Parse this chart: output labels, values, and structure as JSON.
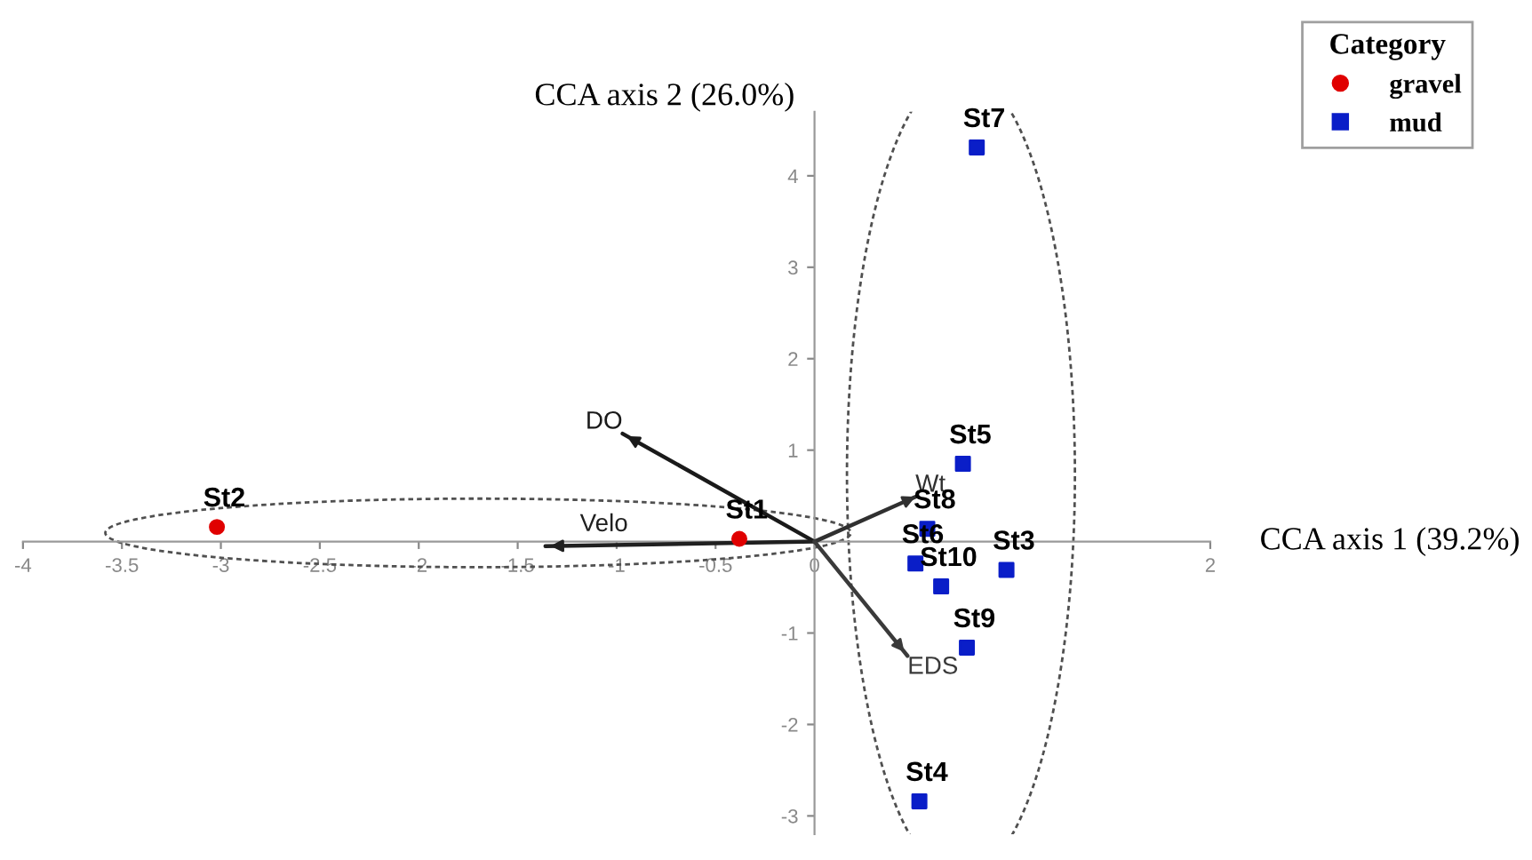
{
  "chart_data": {
    "type": "scatter",
    "xlabel": "CCA axis 1 (39.2%)",
    "ylabel": "CCA axis 2 (26.0%)",
    "legend_title": "Category",
    "xlim": [
      -4,
      2
    ],
    "ylim": [
      -3.2,
      4.7
    ],
    "xticks": [
      -4,
      -3.5,
      -3,
      -2.5,
      -2,
      -1.5,
      -1,
      -0.5,
      0,
      2
    ],
    "yticks": [
      -3,
      -2,
      -1,
      {
        "value": 0,
        "label": null
      },
      1,
      2,
      3,
      4
    ],
    "grid": false,
    "legend": "top right",
    "series": [
      {
        "name": "gravel",
        "color": "#e00000",
        "marker": "circle",
        "x": [
          -3.02,
          -0.38
        ],
        "values": [
          0.16,
          0.03
        ]
      },
      {
        "name": "mud",
        "color": "#0a1ec8",
        "marker": "square",
        "x": [
          0.82,
          0.75,
          0.57,
          0.51,
          0.64,
          0.97,
          0.77,
          0.53
        ],
        "values": [
          4.31,
          0.85,
          0.14,
          -0.24,
          -0.49,
          -0.31,
          -1.16,
          -2.84
        ]
      },
      {
        "name": "DO",
        "type": "line",
        "color": "#1a1a1a",
        "x": [
          0,
          -0.97
        ],
        "values": [
          0,
          1.18
        ]
      },
      {
        "name": "Velo",
        "type": "line",
        "color": "#202020",
        "x": [
          0,
          -1.36
        ],
        "values": [
          0,
          -0.05
        ]
      },
      {
        "name": "Wt",
        "type": "line",
        "color": "#303030",
        "x": [
          0,
          0.51
        ],
        "values": [
          0,
          0.49
        ]
      },
      {
        "name": "EDS",
        "type": "line",
        "color": "#3a3a3a",
        "x": [
          0,
          0.47
        ],
        "values": [
          0,
          -1.25
        ]
      }
    ],
    "annotations": [
      {
        "text": "St2",
        "x": -3.02,
        "y": 0.16
      },
      {
        "text": "St1",
        "x": -0.38,
        "y": 0.03
      },
      {
        "text": "St7",
        "x": 0.82,
        "y": 4.31
      },
      {
        "text": "St5",
        "x": 0.75,
        "y": 0.85
      },
      {
        "text": "St8",
        "x": 0.57,
        "y": 0.14
      },
      {
        "text": "St6",
        "x": 0.51,
        "y": -0.24
      },
      {
        "text": "St10",
        "x": 0.64,
        "y": -0.49
      },
      {
        "text": "St3",
        "x": 0.97,
        "y": -0.31
      },
      {
        "text": "St9",
        "x": 0.77,
        "y": -1.16
      },
      {
        "text": "St4",
        "x": 0.53,
        "y": -2.84
      }
    ]
  }
}
